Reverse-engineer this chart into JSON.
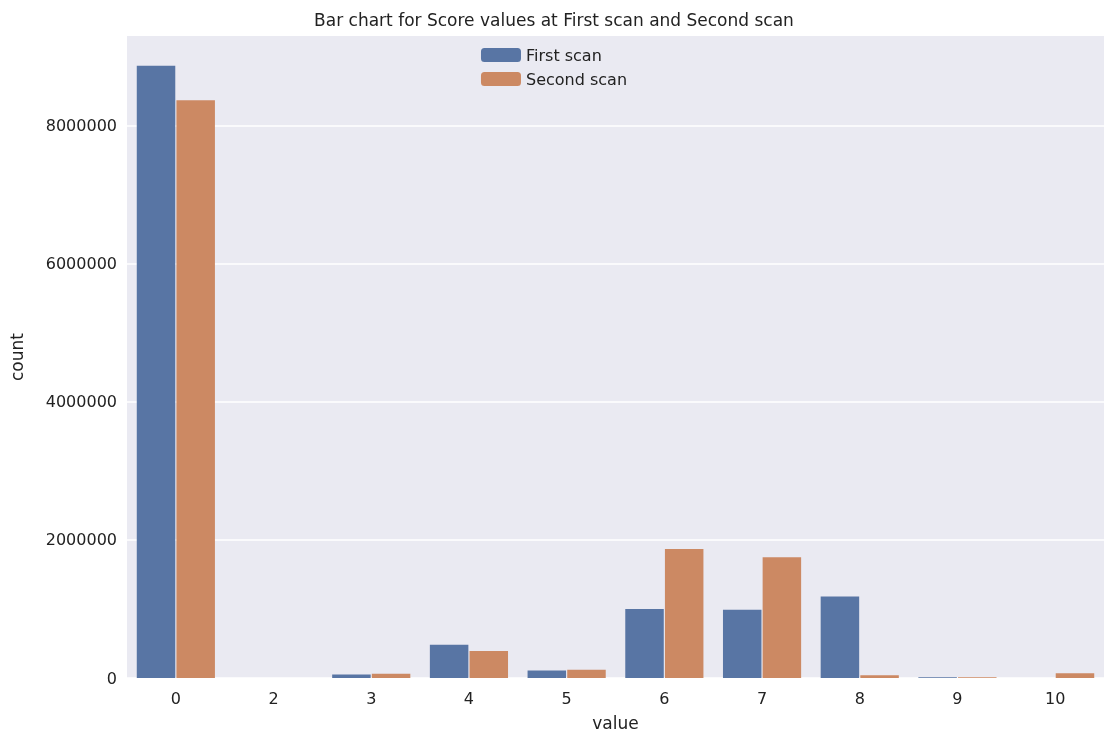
{
  "chart_data": {
    "type": "bar",
    "title": "Bar chart for Score values at First scan and Second scan",
    "xlabel": "value",
    "ylabel": "count",
    "categories": [
      "0",
      "2",
      "3",
      "4",
      "5",
      "6",
      "7",
      "8",
      "9",
      "10"
    ],
    "series": [
      {
        "name": "First scan",
        "color": "#5875a4",
        "values": [
          8870000,
          0,
          50000,
          480000,
          110000,
          1000000,
          990000,
          1180000,
          10000,
          0
        ]
      },
      {
        "name": "Second scan",
        "color": "#cc8963",
        "values": [
          8370000,
          0,
          60000,
          390000,
          120000,
          1870000,
          1750000,
          40000,
          10000,
          70000
        ]
      }
    ],
    "ylim": [
      0,
      9300000
    ],
    "yticks": [
      0,
      2000000,
      4000000,
      6000000,
      8000000
    ],
    "grid": "y",
    "legend": "top"
  }
}
